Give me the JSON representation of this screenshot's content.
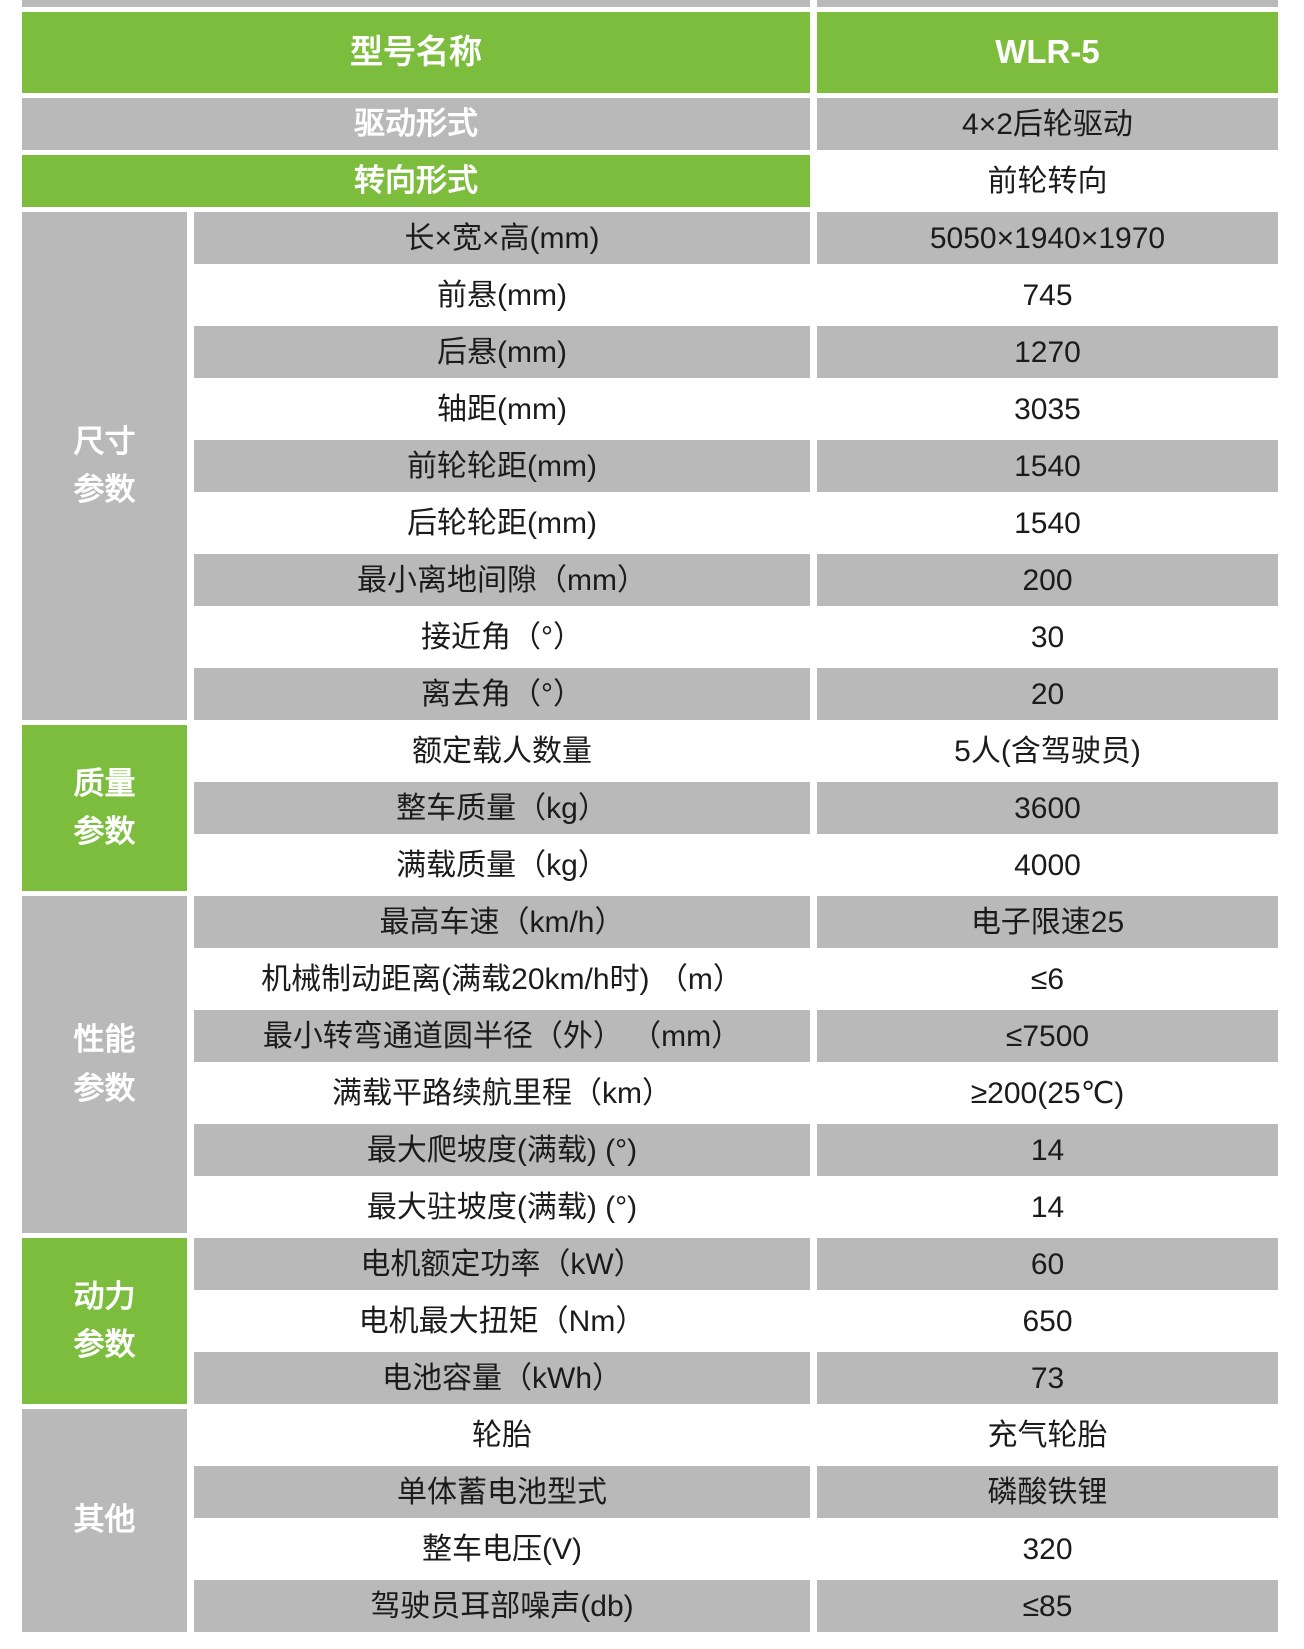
{
  "colors": {
    "accent_green": "#7dbd3e",
    "row_gray": "#b9b9b9",
    "row_white": "#ffffff",
    "dark_text": "#1b1b1b",
    "light_text": "#ffffff"
  },
  "table": {
    "header": {
      "label": "型号名称",
      "value": "WLR-5"
    },
    "top_rows": [
      {
        "label": "驱动形式",
        "tone": "gray",
        "value": "4×2后轮驱动"
      },
      {
        "label": "转向形式",
        "tone": "green",
        "value": "前轮转向"
      }
    ],
    "groups": [
      {
        "name": "尺寸参数",
        "tone": "gray",
        "rows": [
          {
            "label": "长×宽×高(mm)",
            "value": "5050×1940×1970"
          },
          {
            "label": "前悬(mm)",
            "value": "745"
          },
          {
            "label": "后悬(mm)",
            "value": "1270"
          },
          {
            "label": "轴距(mm)",
            "value": "3035"
          },
          {
            "label": "前轮轮距(mm)",
            "value": "1540"
          },
          {
            "label": "后轮轮距(mm)",
            "value": "1540"
          },
          {
            "label": "最小离地间隙（mm）",
            "value": "200"
          },
          {
            "label": "接近角（°）",
            "value": "30"
          },
          {
            "label": "离去角（°）",
            "value": "20"
          }
        ]
      },
      {
        "name": "质量参数",
        "tone": "green",
        "rows": [
          {
            "label": "额定载人数量",
            "value": "5人(含驾驶员)"
          },
          {
            "label": "整车质量（kg）",
            "value": "3600"
          },
          {
            "label": "满载质量（kg）",
            "value": "4000"
          }
        ]
      },
      {
        "name": "性能参数",
        "tone": "gray",
        "rows": [
          {
            "label": "最高车速（km/h）",
            "value": "电子限速25"
          },
          {
            "label": "机械制动距离(满载20km/h时) （m）",
            "value": "≤6"
          },
          {
            "label": "最小转弯通道圆半径（外） （mm）",
            "value": "≤7500"
          },
          {
            "label": "满载平路续航里程（km）",
            "value": "≥200(25℃)"
          },
          {
            "label": "最大爬坡度(满载) (°)",
            "value": "14"
          },
          {
            "label": "最大驻坡度(满载) (°)",
            "value": "14"
          }
        ]
      },
      {
        "name": "动力参数",
        "tone": "green",
        "rows": [
          {
            "label": "电机额定功率（kW）",
            "value": "60"
          },
          {
            "label": "电机最大扭矩（Nm）",
            "value": "650"
          },
          {
            "label": "电池容量（kWh）",
            "value": "73"
          }
        ]
      },
      {
        "name": "其他",
        "tone": "gray",
        "rows": [
          {
            "label": "轮胎",
            "value": "充气轮胎"
          },
          {
            "label": "单体蓄电池型式",
            "value": "磷酸铁锂"
          },
          {
            "label": "整车电压(V)",
            "value": "320"
          },
          {
            "label": "驾驶员耳部噪声(db)",
            "value": "≤85"
          }
        ]
      }
    ]
  }
}
